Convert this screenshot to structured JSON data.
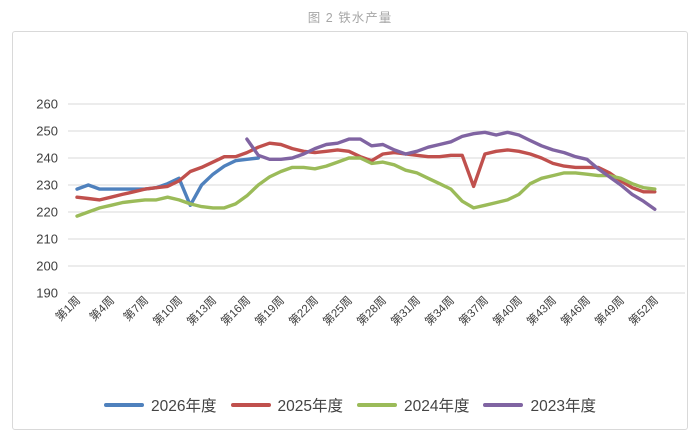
{
  "title": "图 2 铁水产量",
  "colors": {
    "grid": "#d9d9d9",
    "card_border": "#d9d9d9",
    "axis_text": "#404040",
    "title_text": "#a6a6a6",
    "legend_text": "#444444"
  },
  "chart_data": {
    "type": "line",
    "title": "图 2 铁水产量",
    "xlabel": "",
    "ylabel": "",
    "ylim": [
      190,
      260
    ],
    "yticks": [
      190,
      200,
      210,
      220,
      230,
      240,
      250,
      260
    ],
    "x_total_weeks": 52,
    "x_tick_weeks": [
      1,
      4,
      7,
      10,
      13,
      16,
      19,
      22,
      25,
      28,
      31,
      34,
      37,
      40,
      43,
      46,
      49,
      52
    ],
    "x_tick_labels": [
      "第1周",
      "第4周",
      "第7周",
      "第10周",
      "第13周",
      "第16周",
      "第19周",
      "第22周",
      "第25周",
      "第28周",
      "第31周",
      "第34周",
      "第37周",
      "第40周",
      "第43周",
      "第46周",
      "第49周",
      "第52周"
    ],
    "grid": "horizontal",
    "legend_position": "bottom",
    "series": [
      {
        "name": "2026年度",
        "color": "#4f81bd",
        "start_week": 1,
        "values": [
          228.5,
          230,
          228.5,
          228.5,
          228.5,
          228.5,
          228.5,
          229,
          230.5,
          232.5,
          222.5,
          230,
          234,
          237,
          239,
          239.5,
          240
        ]
      },
      {
        "name": "2025年度",
        "color": "#c0504d",
        "start_week": 1,
        "values": [
          225.5,
          225,
          224.5,
          225.5,
          226.5,
          227.5,
          228.5,
          229,
          229.5,
          231.5,
          235,
          236.5,
          238.5,
          240.5,
          240.5,
          242,
          244,
          245.5,
          245,
          243.5,
          242.5,
          242,
          242.5,
          243,
          242.5,
          240.5,
          239,
          241.5,
          242,
          241.5,
          241,
          240.5,
          240.5,
          241,
          241,
          229.5,
          241.5,
          242.5,
          243,
          242.5,
          241.5,
          240,
          238,
          237,
          236.5,
          236.5,
          236.5,
          234.5,
          231.5,
          229,
          227.5,
          227.5
        ]
      },
      {
        "name": "2024年度",
        "color": "#9bbb59",
        "start_week": 1,
        "values": [
          218.5,
          220,
          221.5,
          222.5,
          223.5,
          224,
          224.5,
          224.5,
          225.5,
          224.5,
          223,
          222,
          221.5,
          221.5,
          223,
          226,
          230,
          233,
          235,
          236.5,
          236.5,
          236,
          237,
          238.5,
          240,
          240,
          238,
          238.5,
          237.5,
          235.5,
          234.5,
          232.5,
          230.5,
          228.5,
          224,
          221.5,
          222.5,
          223.5,
          224.5,
          226.5,
          230.5,
          232.5,
          233.5,
          234.5,
          234.5,
          234,
          233.5,
          233.5,
          232.5,
          230.5,
          229,
          228.5
        ]
      },
      {
        "name": "2023年度",
        "color": "#8064a2",
        "start_week": 16,
        "values": [
          247,
          241,
          239.5,
          239.5,
          240,
          241.5,
          243.5,
          245,
          245.5,
          247,
          247,
          244.5,
          245,
          243,
          241.5,
          242.5,
          244,
          245,
          246,
          248,
          249,
          249.5,
          248.5,
          249.5,
          248.5,
          246.5,
          244.5,
          243,
          242,
          240.5,
          239.5,
          236,
          233,
          230,
          226.5,
          224,
          221
        ]
      }
    ]
  }
}
